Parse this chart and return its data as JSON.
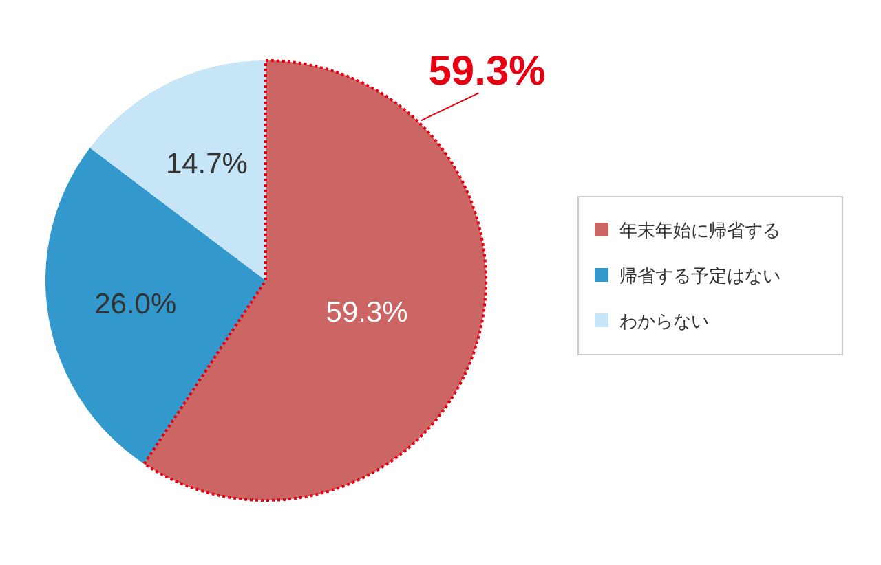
{
  "chart_data": {
    "type": "pie",
    "categories": [
      "年末年始に帰省する",
      "帰省する予定はない",
      "わからない"
    ],
    "values": [
      59.3,
      26.0,
      14.7
    ],
    "colors": [
      "#cb6664",
      "#3399cc",
      "#c6e6f8"
    ],
    "value_labels": [
      "59.3%",
      "26.0%",
      "14.7%"
    ],
    "annotations": [
      {
        "text": "59.3%",
        "x": "年末年始に帰省する"
      }
    ],
    "legend": "right"
  }
}
